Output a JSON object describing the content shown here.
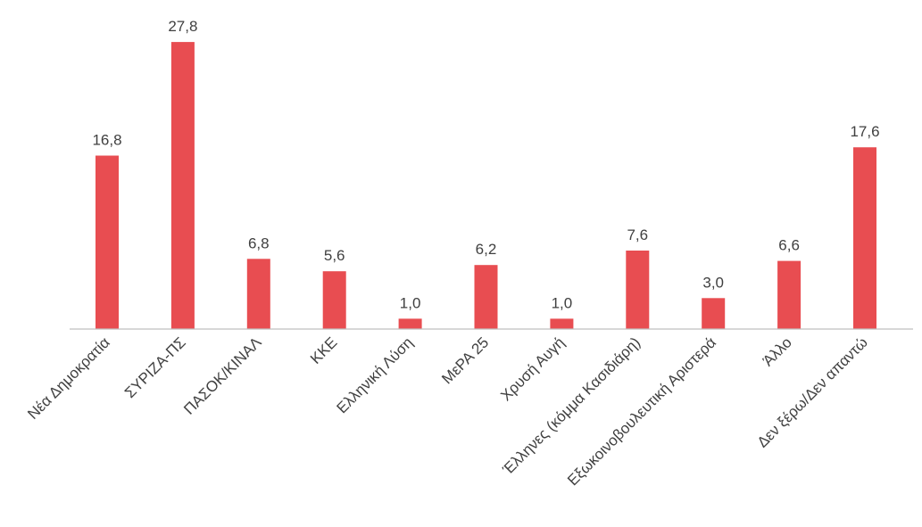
{
  "chart_data": {
    "type": "bar",
    "categories": [
      "Νέα Δημοκρατία",
      "ΣΥΡΙΖΑ-ΠΣ",
      "ΠΑΣΟΚ/ΚΙΝΑΛ",
      "ΚΚΕ",
      "Ελληνική Λύση",
      "ΜεΡΑ 25",
      "Χρυσή Αυγή",
      "Έλληνες (κόμμα Κασιδιάρη)",
      "Εξωκοινοβουλευτική Αριστερά",
      "Άλλο",
      "Δεν ξέρω/Δεν απαντώ"
    ],
    "values": [
      16.8,
      27.8,
      6.8,
      5.6,
      1.0,
      6.2,
      1.0,
      7.6,
      3.0,
      6.6,
      17.6
    ],
    "value_labels": [
      "16,8",
      "27,8",
      "6,8",
      "5,6",
      "1,0",
      "6,2",
      "1,0",
      "7,6",
      "3,0",
      "6,6",
      "17,6"
    ],
    "bar_color": "#e84d51",
    "axis_color": "#bfbfbf",
    "grid": false,
    "legend": "none"
  }
}
